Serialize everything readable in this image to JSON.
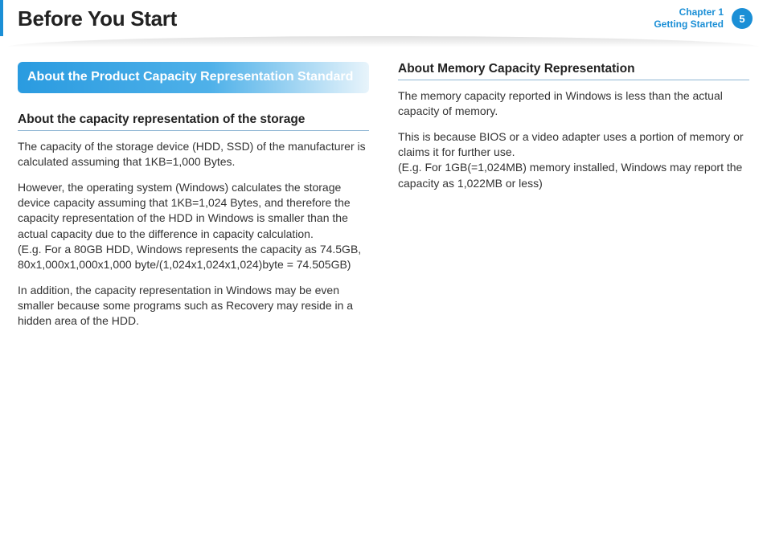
{
  "header": {
    "title": "Before You Start",
    "chapter_line1": "Chapter 1",
    "chapter_line2": "Getting Started",
    "page_number": "5",
    "accent_color": "#1b8fd6"
  },
  "left": {
    "callout": "About the Product Capacity Representation Standard",
    "heading1": "About the capacity representation of the storage",
    "p1": "The capacity of the storage device (HDD, SSD) of the manufacturer is calculated assuming that 1KB=1,000 Bytes.",
    "p2": "However, the operating system (Windows) calculates the storage device capacity assuming that 1KB=1,024 Bytes, and therefore the capacity representation of the HDD in Windows is smaller than the actual capacity due to the difference in capacity calculation.\n(E.g. For a 80GB HDD, Windows represents the capacity as 74.5GB, 80x1,000x1,000x1,000 byte/(1,024x1,024x1,024)byte = 74.505GB)",
    "p3": "In addition, the capacity representation in Windows may be even smaller because some programs such as Recovery may reside in a hidden area of the HDD."
  },
  "right": {
    "heading1": "About Memory Capacity Representation",
    "p1": "The memory capacity reported in Windows is less than the actual capacity of memory.",
    "p2": "This is because BIOS or a video adapter uses a portion of memory or claims it for further use.\n(E.g. For 1GB(=1,024MB) memory installed, Windows may report the capacity as 1,022MB or less)"
  }
}
